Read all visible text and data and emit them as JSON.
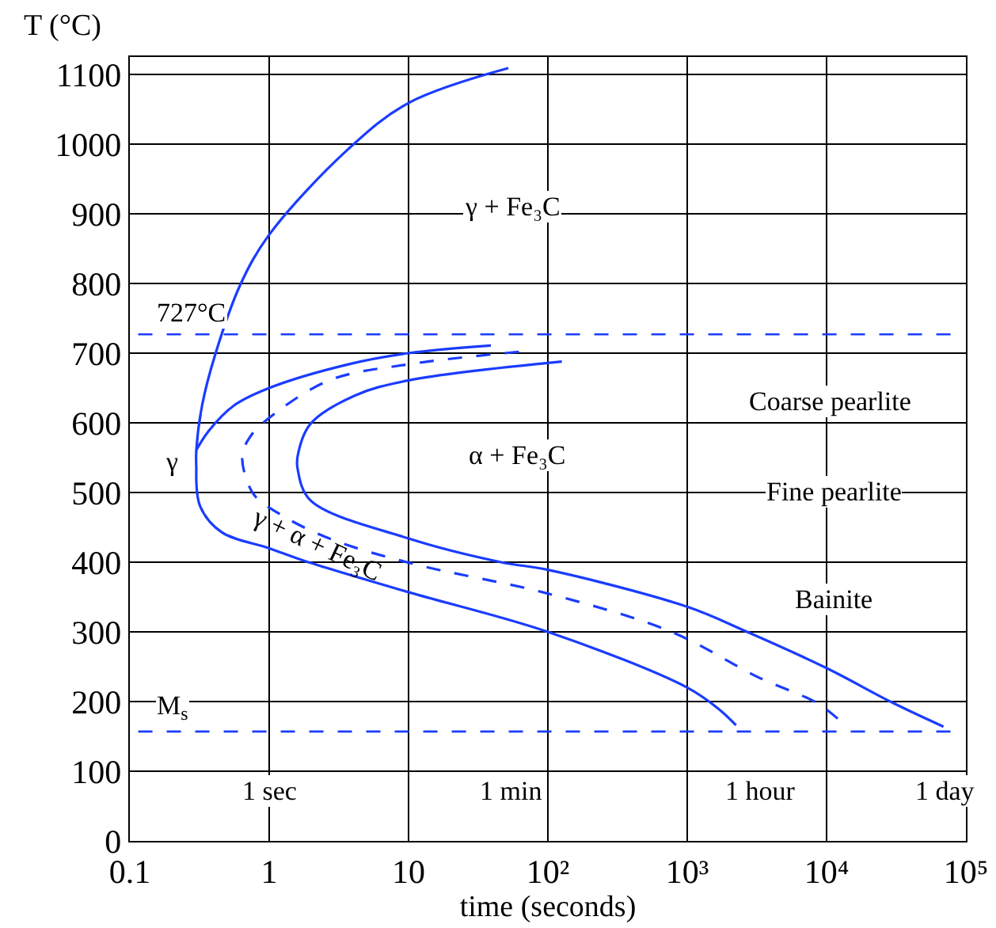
{
  "chart_data": {
    "type": "line",
    "xlabel": "time (seconds)",
    "ylabel": "T (°C)",
    "log": "x",
    "grid": true,
    "marker": "none",
    "xlim": [
      0.1,
      100000
    ],
    "ylim": [
      0,
      1125
    ],
    "xticks": [
      {
        "value": 0.1,
        "label": "0.1"
      },
      1,
      10,
      {
        "value": 100,
        "label": "10²"
      },
      {
        "value": 1000,
        "label": "10³"
      },
      {
        "value": 10000,
        "label": "10⁴"
      },
      {
        "value": 100000,
        "label": "10⁵"
      }
    ],
    "yticks": [
      0,
      100,
      200,
      300,
      400,
      500,
      600,
      700,
      800,
      900,
      1000,
      1100
    ],
    "series": [
      {
        "color": "#1a3cff",
        "line_style": "solid",
        "x": [
          0.3,
          0.32,
          0.456,
          1,
          1.78,
          10,
          100,
          1000,
          1690,
          2240
        ],
        "values": [
          534,
          480,
          443,
          420,
          402,
          357,
          300,
          220,
          189,
          166
        ]
      },
      {
        "color": "#1a3cff",
        "line_style": "solid",
        "x": [
          0.3,
          0.37,
          0.56,
          1,
          3.7,
          10,
          39
        ],
        "values": [
          561,
          589,
          625,
          650,
          684,
          700,
          711
        ]
      },
      {
        "color": "#1a3cff",
        "line_style": "solid",
        "x": [
          0.3,
          0.3,
          0.33,
          0.41,
          0.62,
          1,
          3.7,
          10,
          52
        ],
        "values": [
          534,
          561,
          625,
          698,
          798,
          870,
          993,
          1059,
          1109
        ]
      },
      {
        "color": "#1a3cff",
        "line_style": "dashed",
        "x": [
          62,
          10,
          2.7,
          1,
          0.73,
          0.64,
          0.77,
          1.17,
          2.7,
          10.6,
          100,
          770,
          3300,
          8500,
          12900
        ],
        "values": [
          702,
          684,
          661,
          607,
          580,
          552,
          498,
          470,
          434,
          398,
          355,
          300,
          234,
          198,
          170
        ]
      },
      {
        "color": "#1a3cff",
        "line_style": "solid",
        "x": [
          126,
          10,
          4.1,
          1.97,
          1.6,
          1.6,
          1.97,
          10,
          46,
          100,
          1000,
          2690,
          10000,
          30000,
          69000
        ],
        "values": [
          688,
          661,
          639,
          598,
          552,
          534,
          489,
          434,
          400,
          389,
          336,
          300,
          248,
          198,
          164
        ]
      }
    ],
    "ref_lines": [
      {
        "axis": "y",
        "value": 727,
        "label": "727°C",
        "color": "#1a3cff",
        "line_style": "dashed"
      },
      {
        "axis": "y",
        "value": 157,
        "label": "M$_{s}$",
        "color": "#1a3cff",
        "line_style": "dashed"
      }
    ],
    "annotations": [
      "γ + Fe₃C",
      "α + Fe₃C",
      "γ",
      "γ + α + Fe₃C",
      "Coarse pearlite",
      "Fine pearlite",
      "Bainite",
      "1 sec",
      "1 min",
      "1 hour",
      "1 day"
    ]
  }
}
